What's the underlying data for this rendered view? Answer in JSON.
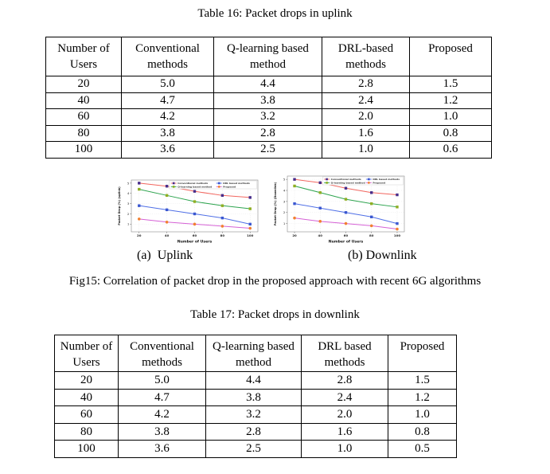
{
  "page": {
    "table16_title": "Table 16: Packet drops in uplink",
    "subcaption_a": "(a)  Uplink",
    "subcaption_b": "(b) Downlink",
    "fig_caption": "Fig15: Correlation of packet drop in the proposed approach with recent 6G algorithms",
    "table17_title": "Table 17: Packet drops in downlink"
  },
  "table16": {
    "headers": [
      "Number of Users",
      "Conventional methods",
      "Q-learning based method",
      "DRL-based methods",
      "Proposed"
    ],
    "rows": [
      [
        "20",
        "5.0",
        "4.4",
        "2.8",
        "1.5"
      ],
      [
        "40",
        "4.7",
        "3.8",
        "2.4",
        "1.2"
      ],
      [
        "60",
        "4.2",
        "3.2",
        "2.0",
        "1.0"
      ],
      [
        "80",
        "3.8",
        "2.8",
        "1.6",
        "0.8"
      ],
      [
        "100",
        "3.6",
        "2.5",
        "1.0",
        "0.6"
      ]
    ]
  },
  "table17": {
    "headers": [
      "Number of Users",
      "Conventional methods",
      "Q-learning based method",
      "DRL based methods",
      "Proposed"
    ],
    "rows": [
      [
        "20",
        "5.0",
        "4.4",
        "2.8",
        "1.5"
      ],
      [
        "40",
        "4.7",
        "3.8",
        "2.4",
        "1.2"
      ],
      [
        "60",
        "4.2",
        "3.2",
        "2.0",
        "1.0"
      ],
      [
        "80",
        "3.8",
        "2.8",
        "1.6",
        "0.8"
      ],
      [
        "100",
        "3.6",
        "2.5",
        "1.0",
        "0.5"
      ]
    ]
  },
  "chart_data": [
    {
      "type": "line",
      "title": "",
      "x": [
        20,
        40,
        60,
        80,
        100
      ],
      "xlabel": "Number of Users",
      "ylabel": "Packet Drop (%) (uplink)",
      "ylim": [
        0.25,
        5.3
      ],
      "yticks": [
        1,
        2,
        3,
        4,
        5
      ],
      "grid": true,
      "legend_position": "top",
      "series": [
        {
          "name": "Conventional methods",
          "values": [
            5.0,
            4.7,
            4.2,
            3.8,
            3.6
          ],
          "line_color": "#f2665f",
          "marker_color": "#472d8a",
          "marker": "square"
        },
        {
          "name": "Q-learning based method",
          "values": [
            4.4,
            3.8,
            3.2,
            2.8,
            2.5
          ],
          "line_color": "#2ea44f",
          "marker_color": "#8fae22",
          "marker": "square"
        },
        {
          "name": "DRL based methods",
          "values": [
            2.8,
            2.4,
            2.0,
            1.6,
            1.0
          ],
          "line_color": "#4f6fe6",
          "marker_color": "#3a57d0",
          "marker": "square"
        },
        {
          "name": "Proposed",
          "values": [
            1.5,
            1.2,
            1.0,
            0.8,
            0.6
          ],
          "line_color": "#d561d5",
          "marker_color": "#f28031",
          "marker": "circle"
        }
      ]
    },
    {
      "type": "line",
      "title": "",
      "x": [
        20,
        40,
        60,
        80,
        100
      ],
      "xlabel": "Number of Users",
      "ylabel": "Packet Drop (%) (Downlink)",
      "ylim": [
        0.25,
        5.3
      ],
      "yticks": [
        1,
        2,
        3,
        4,
        5
      ],
      "grid": true,
      "legend_position": "top",
      "series": [
        {
          "name": "Conventional methods",
          "values": [
            5.0,
            4.7,
            4.2,
            3.8,
            3.6
          ],
          "line_color": "#f2665f",
          "marker_color": "#472d8a",
          "marker": "square"
        },
        {
          "name": "Q-learning based method",
          "values": [
            4.4,
            3.8,
            3.2,
            2.8,
            2.5
          ],
          "line_color": "#2ea44f",
          "marker_color": "#8fae22",
          "marker": "square"
        },
        {
          "name": "DRL based methods",
          "values": [
            2.8,
            2.4,
            2.0,
            1.6,
            1.0
          ],
          "line_color": "#4f6fe6",
          "marker_color": "#3a57d0",
          "marker": "square"
        },
        {
          "name": "Proposed",
          "values": [
            1.5,
            1.2,
            1.0,
            0.8,
            0.5
          ],
          "line_color": "#d561d5",
          "marker_color": "#f28031",
          "marker": "circle"
        }
      ]
    }
  ]
}
